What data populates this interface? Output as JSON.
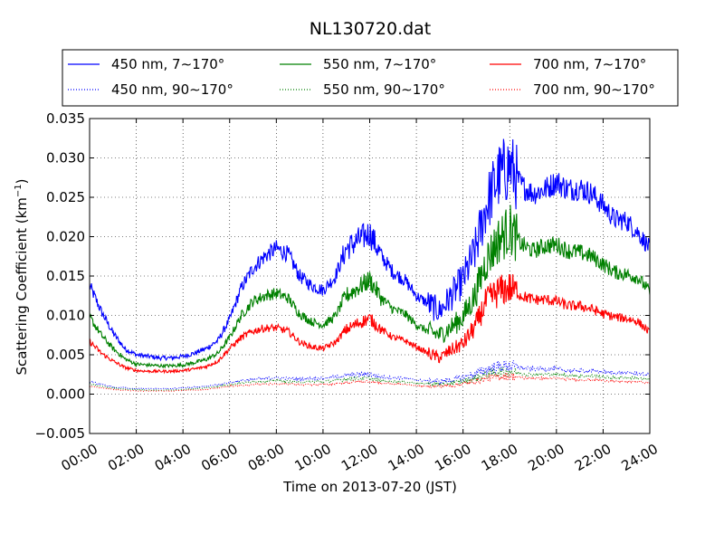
{
  "chart_data": {
    "type": "line",
    "title": "NL130720.dat",
    "xlabel": "Time on 2013-07-20 (JST)",
    "ylabel_main": "Scattering Coefficient (km",
    "ylabel_sup": "−1",
    "ylabel_close": ")",
    "xlim": [
      0,
      24
    ],
    "ylim": [
      -0.005,
      0.035
    ],
    "grid": true,
    "legend_position": "top",
    "xticks": [
      {
        "v": 0,
        "label": "00:00"
      },
      {
        "v": 2,
        "label": "02:00"
      },
      {
        "v": 4,
        "label": "04:00"
      },
      {
        "v": 6,
        "label": "06:00"
      },
      {
        "v": 8,
        "label": "08:00"
      },
      {
        "v": 10,
        "label": "10:00"
      },
      {
        "v": 12,
        "label": "12:00"
      },
      {
        "v": 14,
        "label": "14:00"
      },
      {
        "v": 16,
        "label": "16:00"
      },
      {
        "v": 18,
        "label": "18:00"
      },
      {
        "v": 20,
        "label": "20:00"
      },
      {
        "v": 22,
        "label": "22:00"
      },
      {
        "v": 24,
        "label": "24:00"
      }
    ],
    "yticks": [
      {
        "v": -0.005,
        "label": "−0.005"
      },
      {
        "v": 0,
        "label": "0.000"
      },
      {
        "v": 0.005,
        "label": "0.005"
      },
      {
        "v": 0.01,
        "label": "0.010"
      },
      {
        "v": 0.015,
        "label": "0.015"
      },
      {
        "v": 0.02,
        "label": "0.020"
      },
      {
        "v": 0.025,
        "label": "0.025"
      },
      {
        "v": 0.03,
        "label": "0.030"
      },
      {
        "v": 0.035,
        "label": "0.035"
      }
    ],
    "x": [
      0,
      0.5,
      1,
      1.5,
      2,
      2.5,
      3,
      3.5,
      4,
      4.5,
      5,
      5.5,
      6,
      6.5,
      7,
      7.5,
      8,
      8.5,
      9,
      9.5,
      10,
      10.5,
      11,
      11.5,
      12,
      12.5,
      13,
      13.5,
      14,
      14.5,
      15,
      15.5,
      16,
      16.5,
      17,
      17.5,
      18,
      18.5,
      19,
      19.5,
      20,
      20.5,
      21,
      21.5,
      22,
      22.5,
      23,
      23.5,
      24
    ],
    "series": [
      {
        "name": "450 nm, 7∼170°",
        "color": "#0000ff",
        "style": "solid",
        "values": [
          0.0138,
          0.0105,
          0.0078,
          0.0058,
          0.005,
          0.0048,
          0.0046,
          0.0046,
          0.0048,
          0.0052,
          0.0058,
          0.0068,
          0.0095,
          0.0135,
          0.016,
          0.0175,
          0.0185,
          0.0178,
          0.015,
          0.0138,
          0.0132,
          0.0148,
          0.0185,
          0.0195,
          0.0205,
          0.0175,
          0.0155,
          0.0145,
          0.0125,
          0.0115,
          0.0105,
          0.0125,
          0.0145,
          0.018,
          0.024,
          0.0275,
          0.029,
          0.0265,
          0.0255,
          0.026,
          0.027,
          0.026,
          0.0262,
          0.0255,
          0.024,
          0.0222,
          0.022,
          0.0205,
          0.0185
        ]
      },
      {
        "name": "550 nm, 7∼170°",
        "color": "#008000",
        "style": "solid",
        "values": [
          0.0098,
          0.0075,
          0.0058,
          0.0045,
          0.0038,
          0.0037,
          0.0036,
          0.0036,
          0.0037,
          0.004,
          0.0044,
          0.0052,
          0.0072,
          0.01,
          0.0118,
          0.0125,
          0.0128,
          0.0122,
          0.0102,
          0.0092,
          0.0088,
          0.0098,
          0.0125,
          0.0135,
          0.0145,
          0.0122,
          0.0108,
          0.0102,
          0.0088,
          0.008,
          0.0075,
          0.0085,
          0.0098,
          0.0125,
          0.017,
          0.0195,
          0.021,
          0.019,
          0.0182,
          0.0188,
          0.019,
          0.0182,
          0.018,
          0.0175,
          0.0165,
          0.0155,
          0.0152,
          0.0148,
          0.013
        ]
      },
      {
        "name": "700 nm, 7∼170°",
        "color": "#ff0000",
        "style": "solid",
        "values": [
          0.0067,
          0.0052,
          0.0042,
          0.0034,
          0.003,
          0.0029,
          0.0029,
          0.0029,
          0.003,
          0.0032,
          0.0035,
          0.0042,
          0.0058,
          0.0072,
          0.008,
          0.0084,
          0.0084,
          0.008,
          0.0066,
          0.006,
          0.0058,
          0.0065,
          0.0082,
          0.009,
          0.0096,
          0.0082,
          0.0072,
          0.0068,
          0.006,
          0.0052,
          0.0046,
          0.0056,
          0.0064,
          0.0085,
          0.0118,
          0.013,
          0.0135,
          0.0125,
          0.012,
          0.012,
          0.0118,
          0.0112,
          0.0112,
          0.0108,
          0.0102,
          0.0098,
          0.0096,
          0.0092,
          0.0078
        ]
      },
      {
        "name": "450 nm, 90∼170°",
        "color": "#0000ff",
        "style": "dotted",
        "values": [
          0.0016,
          0.0012,
          0.0009,
          0.0008,
          0.0007,
          0.0007,
          0.0007,
          0.0007,
          0.0008,
          0.0009,
          0.001,
          0.0012,
          0.0015,
          0.0017,
          0.0019,
          0.002,
          0.0021,
          0.002,
          0.0019,
          0.002,
          0.002,
          0.0022,
          0.0024,
          0.0025,
          0.0025,
          0.0022,
          0.0021,
          0.002,
          0.0018,
          0.0017,
          0.0016,
          0.0018,
          0.0021,
          0.0025,
          0.0031,
          0.0035,
          0.0036,
          0.0033,
          0.0032,
          0.0032,
          0.0032,
          0.003,
          0.003,
          0.0029,
          0.0028,
          0.0027,
          0.0027,
          0.0026,
          0.0024
        ]
      },
      {
        "name": "550 nm, 90∼170°",
        "color": "#008000",
        "style": "dotted",
        "values": [
          0.0013,
          0.001,
          0.0008,
          0.0006,
          0.0006,
          0.0005,
          0.0005,
          0.0005,
          0.0006,
          0.0007,
          0.0008,
          0.001,
          0.0012,
          0.0014,
          0.0016,
          0.0016,
          0.0017,
          0.0016,
          0.0015,
          0.0016,
          0.0016,
          0.0017,
          0.0019,
          0.002,
          0.002,
          0.0017,
          0.0016,
          0.0015,
          0.0014,
          0.0013,
          0.0012,
          0.0014,
          0.0016,
          0.002,
          0.0025,
          0.0028,
          0.0029,
          0.0026,
          0.0025,
          0.0025,
          0.0025,
          0.0024,
          0.0023,
          0.0023,
          0.0022,
          0.0021,
          0.0021,
          0.002,
          0.0018
        ]
      },
      {
        "name": "700 nm, 90∼170°",
        "color": "#ff0000",
        "style": "dotted",
        "values": [
          0.001,
          0.0008,
          0.0006,
          0.0005,
          0.0004,
          0.0004,
          0.0004,
          0.0004,
          0.0005,
          0.0005,
          0.0006,
          0.0008,
          0.001,
          0.0011,
          0.0012,
          0.0013,
          0.0013,
          0.0013,
          0.0012,
          0.0012,
          0.0012,
          0.0013,
          0.0015,
          0.0016,
          0.0016,
          0.0014,
          0.0013,
          0.0012,
          0.0011,
          0.001,
          0.001,
          0.0011,
          0.0013,
          0.0016,
          0.002,
          0.0022,
          0.0023,
          0.0021,
          0.002,
          0.002,
          0.002,
          0.0019,
          0.0018,
          0.0018,
          0.0017,
          0.0016,
          0.0016,
          0.0016,
          0.0014
        ]
      }
    ]
  }
}
